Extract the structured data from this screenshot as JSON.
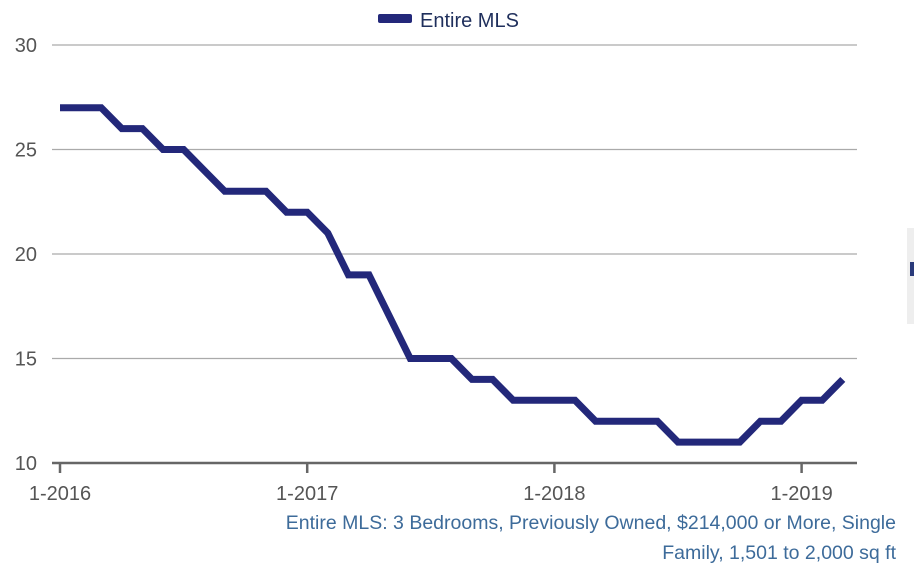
{
  "chart_data": {
    "type": "line",
    "legend": {
      "position": "top-center",
      "entries": [
        "Entire MLS"
      ]
    },
    "grid": true,
    "xlim": [
      "2016-01",
      "2019-03"
    ],
    "ylim": [
      10,
      30
    ],
    "yticks": [
      10,
      15,
      20,
      25,
      30
    ],
    "xticks": [
      "1-2016",
      "1-2017",
      "1-2018",
      "1-2019"
    ],
    "series": [
      {
        "name": "Entire MLS",
        "color": "#23287a",
        "x": [
          "2016-01",
          "2016-02",
          "2016-03",
          "2016-04",
          "2016-05",
          "2016-06",
          "2016-07",
          "2016-08",
          "2016-09",
          "2016-10",
          "2016-11",
          "2016-12",
          "2017-01",
          "2017-02",
          "2017-03",
          "2017-04",
          "2017-05",
          "2017-06",
          "2017-07",
          "2017-08",
          "2017-09",
          "2017-10",
          "2017-11",
          "2017-12",
          "2018-01",
          "2018-02",
          "2018-03",
          "2018-04",
          "2018-05",
          "2018-06",
          "2018-07",
          "2018-08",
          "2018-09",
          "2018-10",
          "2018-11",
          "2018-12",
          "2019-01",
          "2019-02",
          "2019-03"
        ],
        "values": [
          27,
          27,
          27,
          26,
          26,
          25,
          25,
          24,
          23,
          23,
          23,
          22,
          22,
          21,
          19,
          19,
          17,
          15,
          15,
          15,
          14,
          14,
          13,
          13,
          13,
          13,
          12,
          12,
          12,
          12,
          11,
          11,
          11,
          11,
          12,
          12,
          13,
          13,
          14
        ]
      }
    ]
  },
  "caption": {
    "line1": "Entire MLS: 3 Bedrooms, Previously Owned, $214,000 or More, Single",
    "line2": "Family, 1,501 to 2,000 sq ft"
  }
}
